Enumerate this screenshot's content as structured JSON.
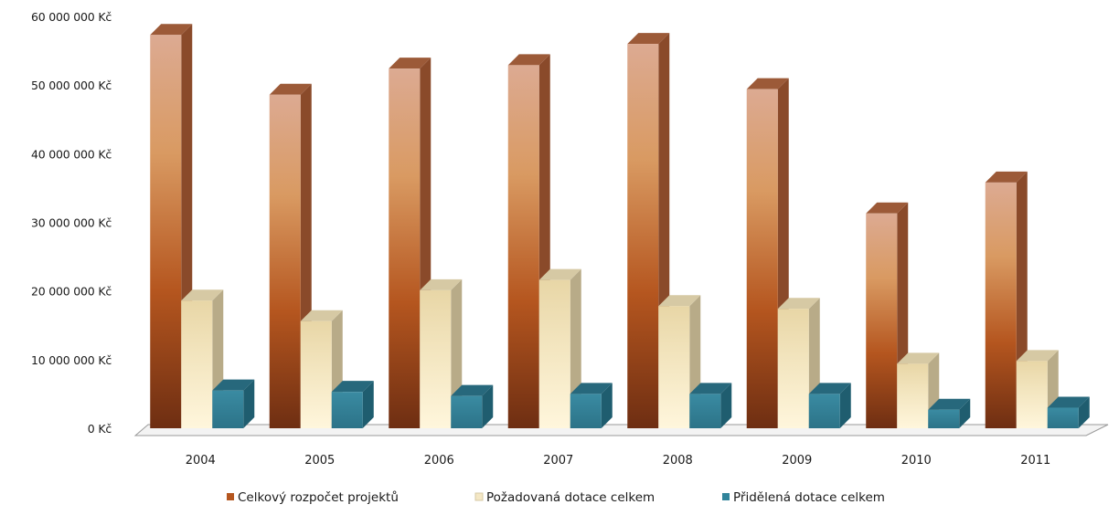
{
  "chart_data": {
    "type": "bar",
    "title": "",
    "xlabel": "",
    "ylabel": "",
    "ylim": [
      0,
      60000000
    ],
    "grid": false,
    "legend_position": "bottom",
    "y_tick_values": [
      0,
      10000000,
      20000000,
      30000000,
      40000000,
      50000000,
      60000000
    ],
    "y_tick_labels": [
      "0 Kč",
      "10 000 000 Kč",
      "20 000 000 Kč",
      "30 000 000 Kč",
      "40 000 000 Kč",
      "50 000 000 Kč",
      "60 000 000 Kč"
    ],
    "categories": [
      "2004",
      "2005",
      "2006",
      "2007",
      "2008",
      "2009",
      "2010",
      "2011"
    ],
    "series": [
      {
        "name": "Celkový rozpočet projektů",
        "values": [
          57300000,
          48600000,
          52400000,
          52900000,
          56000000,
          49400000,
          31300000,
          35800000
        ],
        "color": "#c8763a"
      },
      {
        "name": "Požadovaná dotace celkem",
        "values": [
          18600000,
          15600000,
          20100000,
          21600000,
          17800000,
          17400000,
          9400000,
          9800000
        ],
        "color": "#f4e7c4"
      },
      {
        "name": "Přidělená dotace celkem",
        "values": [
          5500000,
          5300000,
          4700000,
          5000000,
          5000000,
          5000000,
          2700000,
          3000000
        ],
        "color": "#31849b"
      }
    ]
  }
}
